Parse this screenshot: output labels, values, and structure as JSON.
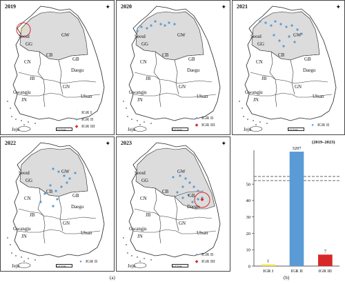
{
  "maps": [
    {
      "year": "2019",
      "regions": [
        "Seoul",
        "GG",
        "GW",
        "CB",
        "CN",
        "Daegu",
        "GB",
        "JB",
        "GN",
        "Ulsan",
        "Gwangju",
        "JN",
        "Jeju"
      ],
      "legend": [
        {
          "label": "IGR I",
          "color": "#f3e24a",
          "marker": "line"
        },
        {
          "label": "IGR II",
          "color": "#5b9bd5",
          "marker": "dot"
        },
        {
          "label": "IGR III",
          "color": "#d62828",
          "marker": "diamond"
        }
      ],
      "scale_label": "0 25 50 km"
    },
    {
      "year": "2020",
      "regions": [
        "Seoul",
        "GG",
        "GW",
        "CB",
        "CN",
        "Daegu",
        "GB",
        "JB",
        "GN",
        "Ulsan",
        "Gwangju",
        "JN",
        "Jeju"
      ],
      "legend": [
        {
          "label": "IGR II",
          "color": "#5b9bd5",
          "marker": "dot"
        },
        {
          "label": "IGR III",
          "color": "#d62828",
          "marker": "diamond"
        }
      ],
      "scale_label": "0 25 50 km"
    },
    {
      "year": "2021",
      "regions": [
        "Seoul",
        "GG",
        "GW",
        "CB",
        "CN",
        "Daegu",
        "GB",
        "JB",
        "GN",
        "Ulsan",
        "Gwangju",
        "JN",
        "Jeju"
      ],
      "legend": [
        {
          "label": "IGR II",
          "color": "#5b9bd5",
          "marker": "dot"
        }
      ],
      "scale_label": "0 25 50 km"
    },
    {
      "year": "2022",
      "regions": [
        "Seoul",
        "GG",
        "GW",
        "CB",
        "CN",
        "Daegu",
        "GB",
        "JB",
        "GN",
        "Ulsan",
        "Gwangju",
        "JN",
        "Jeju"
      ],
      "legend": [
        {
          "label": "IGR II",
          "color": "#5b9bd5",
          "marker": "dot"
        }
      ],
      "scale_label": "0 25 50 km"
    },
    {
      "year": "2023",
      "regions": [
        "Seoul",
        "GG",
        "GW",
        "CB",
        "CN",
        "Daegu",
        "GB",
        "JB",
        "GN",
        "Ulsan",
        "Gwangju",
        "JN",
        "Jeju"
      ],
      "legend": [
        {
          "label": "IGR II",
          "color": "#5b9bd5",
          "marker": "dot"
        },
        {
          "label": "IGR III",
          "color": "#d62828",
          "marker": "diamond"
        }
      ],
      "scale_label": "0 25 50 km"
    }
  ],
  "captions": {
    "a": "(a)",
    "b": "(b)"
  },
  "colors": {
    "igr1": "#f3e24a",
    "igr2": "#5b9bd5",
    "igr3": "#d62828",
    "highlight_region": "#dcdcdc",
    "circle": "#d62828"
  },
  "chart_data": {
    "type": "bar",
    "title": "(2019–2023)",
    "categories": [
      "IGR I",
      "IGR II",
      "IGR III"
    ],
    "values": [
      1,
      3207,
      7
    ],
    "value_labels": [
      "1",
      "3207",
      "7"
    ],
    "colors": [
      "#f3e24a",
      "#5b9bd5",
      "#d62828"
    ],
    "yticks": [
      0,
      10,
      20,
      30,
      40,
      50
    ],
    "ylim": [
      0,
      53
    ],
    "axis_break": true,
    "grid": false
  }
}
